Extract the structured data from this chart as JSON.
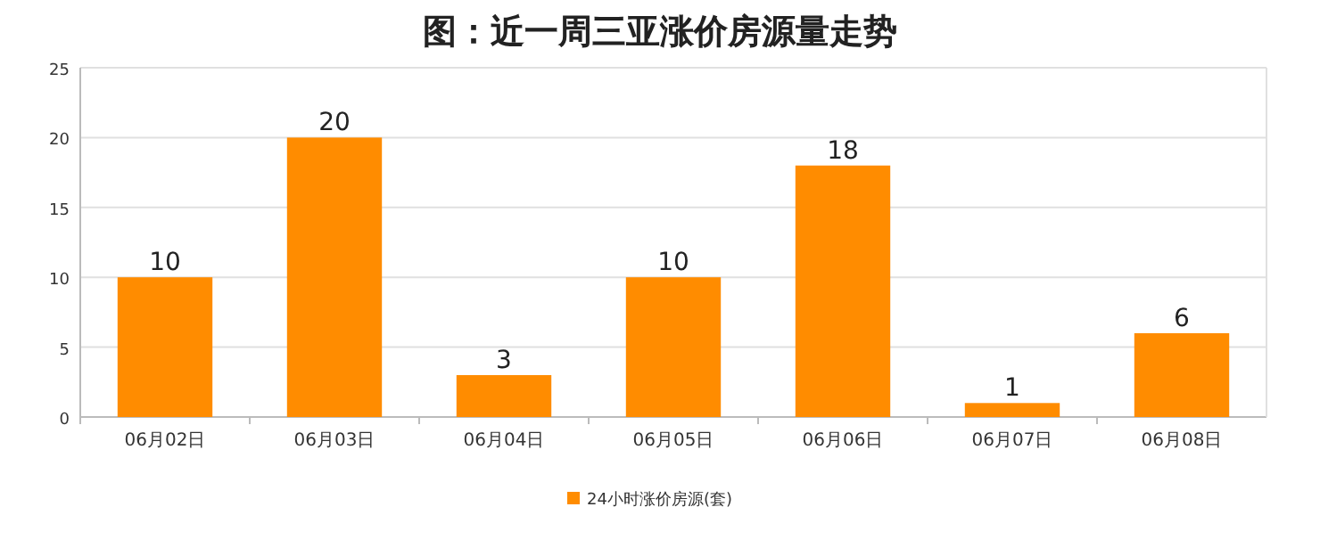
{
  "chart_data": {
    "type": "bar",
    "title": "图：近一周三亚涨价房源量走势",
    "categories": [
      "06月02日",
      "06月03日",
      "06月04日",
      "06月05日",
      "06月06日",
      "06月07日",
      "06月08日"
    ],
    "series": [
      {
        "name": "24小时涨价房源(套)",
        "color": "#ff8c00",
        "values": [
          10,
          20,
          3,
          10,
          18,
          1,
          6
        ]
      }
    ],
    "ylim": [
      0,
      25
    ],
    "yticks": [
      0,
      5,
      10,
      15,
      20,
      25
    ],
    "grid": "y",
    "legend": "bottom",
    "data_labels": true
  }
}
